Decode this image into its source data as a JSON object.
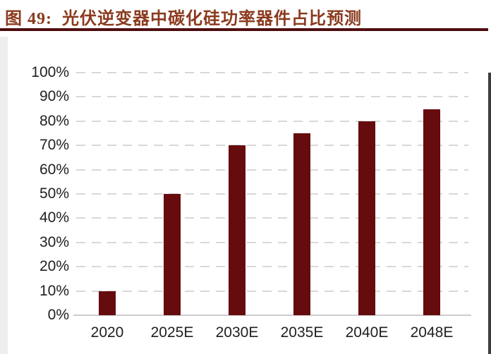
{
  "figure": {
    "label": "图 49:",
    "title": "光伏逆变器中碳化硅功率器件占比预测"
  },
  "chart_data": {
    "type": "bar",
    "title": "光伏逆变器中碳化硅功率器件占比预测",
    "categories": [
      "2020",
      "2025E",
      "2030E",
      "2035E",
      "2040E",
      "2048E"
    ],
    "values": [
      10,
      50,
      70,
      75,
      80,
      85
    ],
    "unit": "%",
    "xlabel": "",
    "ylabel": "",
    "ylim": [
      0,
      100
    ],
    "ytick_step": 10,
    "ytick_labels": [
      "0%",
      "10%",
      "20%",
      "30%",
      "40%",
      "50%",
      "60%",
      "70%",
      "80%",
      "90%",
      "100%"
    ],
    "grid": "horizontal-dashed",
    "legend": "none"
  },
  "colors": {
    "bar": "#660C0E",
    "title_text": "#8B3A1E",
    "title_rule": "#4F0D0F",
    "gridline": "#D8D8D8",
    "baseline": "#CDCDCD",
    "axis_text": "#1F1F1F"
  }
}
